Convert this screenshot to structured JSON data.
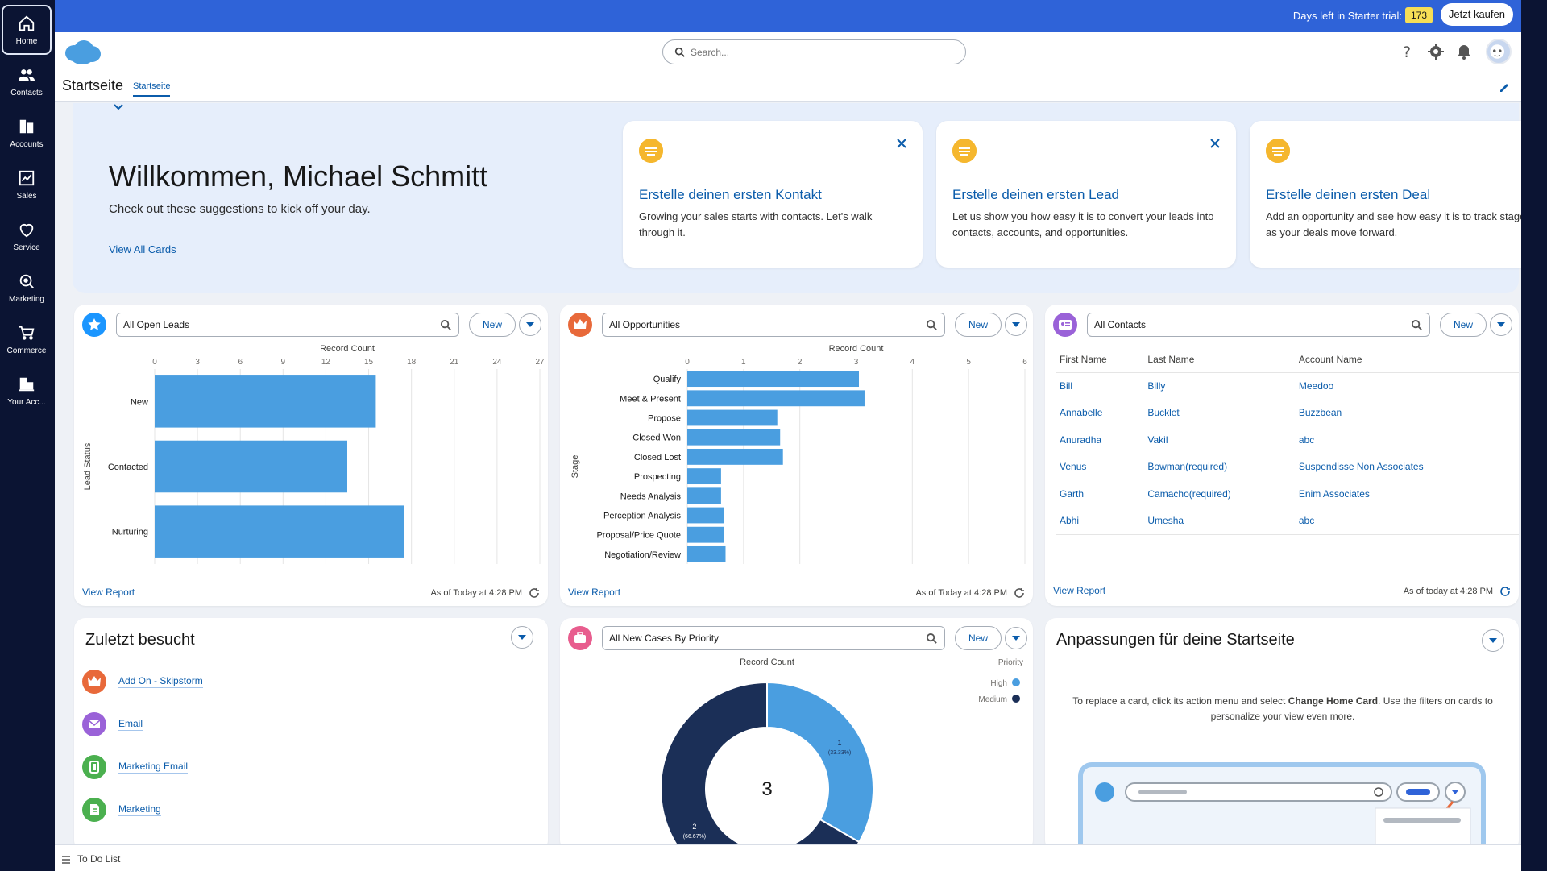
{
  "nav": {
    "items": [
      {
        "label": "Home",
        "icon": "home-icon"
      },
      {
        "label": "Contacts",
        "icon": "contacts-icon"
      },
      {
        "label": "Accounts",
        "icon": "accounts-icon"
      },
      {
        "label": "Sales",
        "icon": "sales-icon"
      },
      {
        "label": "Service",
        "icon": "service-icon"
      },
      {
        "label": "Marketing",
        "icon": "marketing-icon"
      },
      {
        "label": "Commerce",
        "icon": "commerce-icon"
      },
      {
        "label": "Your Acc...",
        "icon": "your-account-icon"
      }
    ]
  },
  "topbar": {
    "trial_text": "Days left in Starter trial:",
    "trial_days": "173",
    "buy_label": "Jetzt kaufen"
  },
  "header": {
    "search_placeholder": "Search...",
    "page_title": "Startseite",
    "page_tab": "Startseite"
  },
  "welcome": {
    "title": "Willkommen, Michael Schmitt",
    "subtitle": "Check out these suggestions to kick off your day.",
    "view_all": "View All Cards",
    "cards": [
      {
        "title": "Erstelle deinen ersten Kontakt",
        "desc": "Growing your sales starts with contacts. Let's walk through it."
      },
      {
        "title": "Erstelle deinen ersten Lead",
        "desc": "Let us show you how easy it is to convert your leads into contacts, accounts, and opportunities."
      },
      {
        "title": "Erstelle deinen ersten Deal",
        "desc": "Add an opportunity and see how easy it is to track stages as your deals move forward."
      }
    ]
  },
  "leads": {
    "list_view": "All Open Leads",
    "new_label": "New",
    "view_report": "View Report",
    "as_of": "As of Today at 4:28 PM"
  },
  "opportunities": {
    "list_view": "All Opportunities",
    "new_label": "New",
    "view_report": "View Report",
    "as_of": "As of Today at 4:28 PM"
  },
  "contacts": {
    "list_view": "All Contacts",
    "new_label": "New",
    "view_report": "View Report",
    "as_of": "As of today at 4:28 PM",
    "columns": [
      "First Name",
      "Last Name",
      "Account Name"
    ],
    "rows": [
      [
        "Bill",
        "Billy",
        "Meedoo"
      ],
      [
        "Annabelle",
        "Bucklet",
        "Buzzbean"
      ],
      [
        "Anuradha",
        "Vakil",
        "abc"
      ],
      [
        "Venus",
        "Bowman(required)",
        "Suspendisse Non Associates"
      ],
      [
        "Garth",
        "Camacho(required)",
        "Enim Associates"
      ],
      [
        "Abhi",
        "Umesha",
        "abc"
      ]
    ]
  },
  "recent": {
    "title": "Zuletzt besucht",
    "items": [
      {
        "label": "Add On - Skipstorm",
        "color": "#e8693a",
        "icon": "opportunity-icon"
      },
      {
        "label": "Email",
        "color": "#9a62d8",
        "icon": "email-icon"
      },
      {
        "label": "Marketing Email",
        "color": "#4bb04f",
        "icon": "marketing-email-icon"
      },
      {
        "label": "Marketing",
        "color": "#4bb04f",
        "icon": "marketing-icon"
      }
    ]
  },
  "cases": {
    "list_view": "All New Cases By Priority",
    "new_label": "New"
  },
  "customize": {
    "title": "Anpassungen für deine Startseite",
    "text_before": "To replace a card, click its action menu and select ",
    "text_bold": "Change Home Card",
    "text_after": ". Use the filters on cards to personalize your view even more."
  },
  "todo": {
    "label": "To Do List"
  },
  "colors": {
    "brand": "#2f63d8",
    "bar": "#4a9ee0",
    "link": "#0b5cab",
    "nav": "#0b1433",
    "high": "#4a9ee0",
    "medium": "#1b2f57"
  },
  "chart_data": [
    {
      "type": "bar",
      "orientation": "horizontal",
      "title": "Record Count",
      "ylabel": "Lead Status",
      "categories": [
        "New",
        "Contacted",
        "Nurturing"
      ],
      "values": [
        15.5,
        13.5,
        17.5
      ],
      "xlim": [
        0,
        27
      ],
      "xticks": [
        "0",
        "3",
        "6",
        "9",
        "12",
        "15",
        "18",
        "21",
        "24",
        "27"
      ]
    },
    {
      "type": "bar",
      "orientation": "horizontal",
      "title": "Record Count",
      "ylabel": "Stage",
      "categories": [
        "Qualify",
        "Meet & Present",
        "Propose",
        "Closed Won",
        "Closed Lost",
        "Prospecting",
        "Needs Analysis",
        "Perception Analysis",
        "Proposal/Price Quote",
        "Negotiation/Review"
      ],
      "values": [
        3.05,
        3.15,
        1.6,
        1.65,
        1.7,
        0.6,
        0.6,
        0.65,
        0.65,
        0.68
      ],
      "xlim": [
        0,
        6
      ],
      "xticks": [
        "0",
        "1",
        "2",
        "3",
        "4",
        "5",
        "6"
      ]
    },
    {
      "type": "pie",
      "donut": true,
      "title": "Record Count",
      "center_label": "3",
      "legend_title": "Priority",
      "legend_position": "top-right",
      "slices": [
        {
          "name": "High",
          "value": 1,
          "label": "1",
          "pct": "(33.33%)"
        },
        {
          "name": "Medium",
          "value": 2,
          "label": "2",
          "pct": "(66.67%)"
        }
      ]
    }
  ]
}
